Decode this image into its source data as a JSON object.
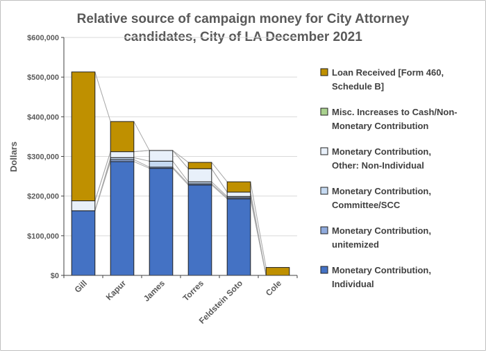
{
  "chart_data": {
    "type": "bar",
    "stacked": true,
    "title": "Relative source of campaign money for City Attorney candidates, City of LA December 2021",
    "title_lines": [
      "Relative source of campaign money for City Attorney",
      "candidates, City of LA December 2021"
    ],
    "xlabel": "",
    "ylabel": "Dollars",
    "ylim": [
      0,
      600000
    ],
    "yticks": [
      0,
      100000,
      200000,
      300000,
      400000,
      500000,
      600000
    ],
    "ytick_labels": [
      "$0",
      "$100,000",
      "$200,000",
      "$300,000",
      "$400,000",
      "$500,000",
      "$600,000"
    ],
    "grid": true,
    "legend_position": "right",
    "categories": [
      "Gill",
      "Kapur",
      "James",
      "Torres",
      "Feldstein Soto",
      "Cole"
    ],
    "series": [
      {
        "name": "Monetary Contribution, Individual",
        "legend_lines": [
          "Monetary Contribution,",
          "Individual"
        ],
        "color": "#4472c4",
        "values": [
          163000,
          287000,
          270000,
          228000,
          193000,
          0
        ]
      },
      {
        "name": "Monetary Contribution, unitemized",
        "legend_lines": [
          "Monetary Contribution,",
          "unitemized"
        ],
        "color": "#8faadc",
        "values": [
          0,
          5000,
          3000,
          3000,
          3000,
          0
        ]
      },
      {
        "name": "Monetary Contribution, Committee/SCC",
        "legend_lines": [
          "Monetary Contribution,",
          "Committee/SCC"
        ],
        "color": "#c5d9f1",
        "values": [
          0,
          5000,
          15000,
          5000,
          3000,
          0
        ]
      },
      {
        "name": "Monetary Contribution, Other: Non-Individual",
        "legend_lines": [
          "Monetary Contribution,",
          "Other: Non-Individual"
        ],
        "color": "#e8f0fa",
        "values": [
          25000,
          15000,
          27000,
          33000,
          11000,
          0
        ]
      },
      {
        "name": "Misc. Increases to Cash/Non-Monetary Contribution",
        "legend_lines": [
          "Misc. Increases to Cash/Non-",
          "Monetary Contribution"
        ],
        "color": "#a9d18e",
        "values": [
          0,
          0,
          0,
          0,
          0,
          0
        ]
      },
      {
        "name": "Loan Received [Form 460, Schedule B]",
        "legend_lines": [
          "Loan Received [Form 460,",
          "Schedule B]"
        ],
        "color": "#bf9000",
        "values": [
          325000,
          76000,
          0,
          16000,
          26000,
          20000
        ]
      }
    ]
  }
}
